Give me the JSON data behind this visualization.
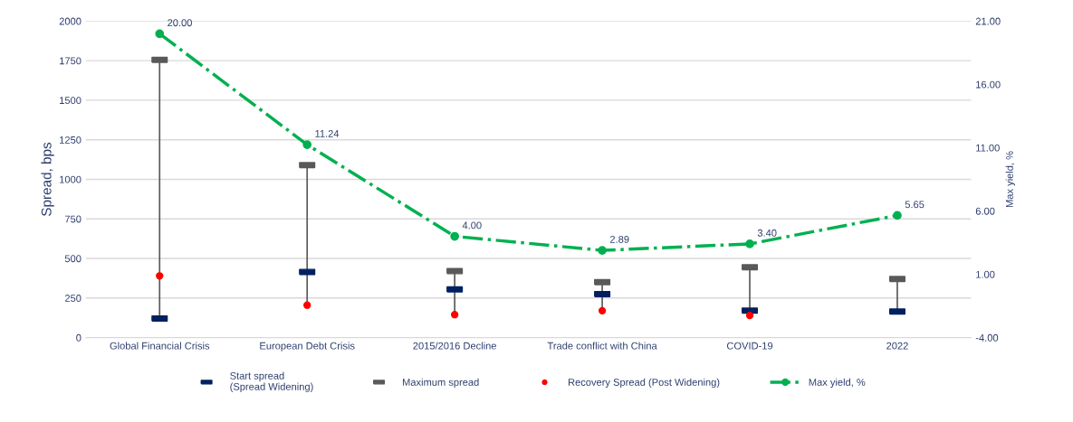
{
  "chart_data": {
    "type": "scatter",
    "ylabel": "Spread, bps",
    "y2label": "Max yield, %",
    "categories": [
      "Global Financial Crisis",
      "European Debt Crisis",
      "2015/2016 Decline",
      "Trade conflict with China",
      "COVID-19",
      "2022"
    ],
    "series": [
      {
        "name": "Start spread\n(Spread Widening)",
        "marker": "square",
        "color": "#002060",
        "values": [
          120,
          415,
          305,
          275,
          170,
          165
        ]
      },
      {
        "name": "Maximum spread",
        "marker": "square",
        "color": "#595959",
        "values": [
          1755,
          1090,
          420,
          350,
          445,
          370
        ]
      },
      {
        "name": "Recovery Spread (Post Widening)",
        "marker": "circle",
        "color": "#ff0000",
        "values": [
          390,
          205,
          145,
          170,
          140,
          null
        ]
      },
      {
        "name": "Max yield, %",
        "type": "line",
        "axis": "y2",
        "marker": "circle",
        "line_style": "dashdot",
        "color": "#00b050",
        "values": [
          20.0,
          11.24,
          4.0,
          2.89,
          3.4,
          5.65
        ],
        "value_labels": [
          "20.00",
          "11.24",
          "4.00",
          "2.89",
          "3.40",
          "5.65"
        ]
      }
    ],
    "ylim": [
      0,
      2000
    ],
    "yticks": [
      0,
      250,
      500,
      750,
      1000,
      1250,
      1500,
      1750,
      2000
    ],
    "y2lim": [
      -4,
      21
    ],
    "y2ticks": [
      {
        "value": -4,
        "label": "-4.00"
      },
      {
        "value": 1,
        "label": "1.00"
      },
      {
        "value": 6,
        "label": "6.00"
      },
      {
        "value": 11,
        "label": "11.00"
      },
      {
        "value": 16,
        "label": "16.00"
      },
      {
        "value": 21,
        "label": "21.00"
      }
    ],
    "grid": "y",
    "legend": "bottom"
  }
}
